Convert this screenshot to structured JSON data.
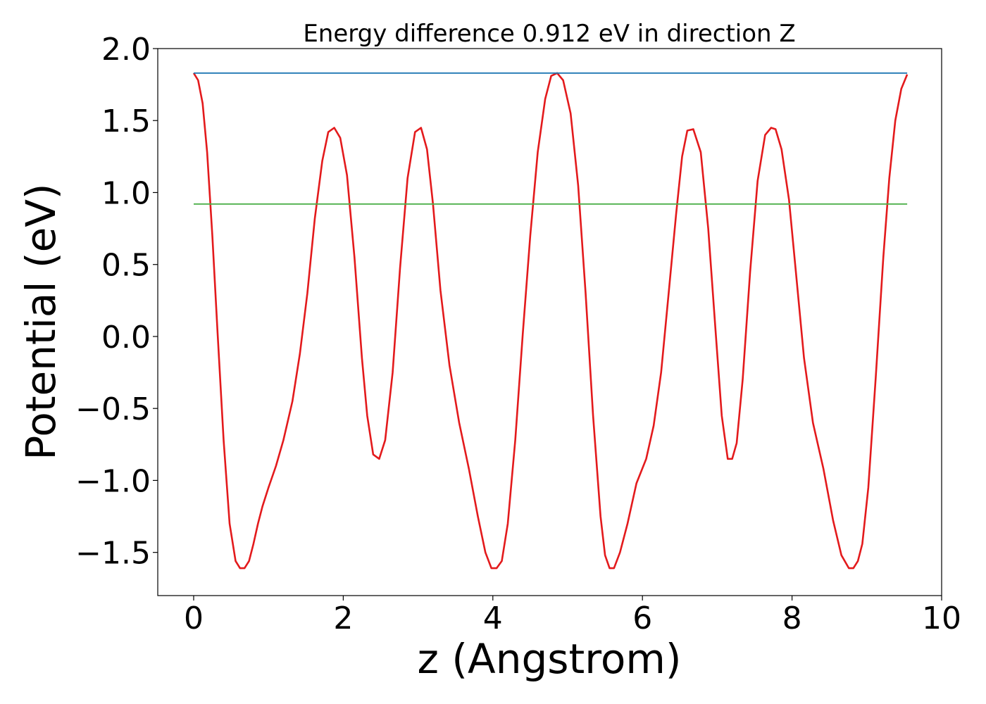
{
  "chart_data": {
    "type": "line",
    "title": "Energy difference 0.912 eV in direction Z",
    "xlabel": "z (Angstrom)",
    "ylabel": "Potential (eV)",
    "xlim": [
      -0.48,
      10.0
    ],
    "ylim": [
      -1.8,
      2.0
    ],
    "xticks": [
      0,
      2,
      4,
      6,
      8,
      10
    ],
    "xtick_labels": [
      "0",
      "2",
      "4",
      "6",
      "8",
      "10"
    ],
    "yticks": [
      -1.5,
      -1.0,
      -0.5,
      0.0,
      0.5,
      1.0,
      1.5,
      2.0
    ],
    "ytick_labels": [
      "−1.5",
      "−1.0",
      "−0.5",
      "0.0",
      "0.5",
      "1.0",
      "1.5",
      "2.0"
    ],
    "grid": false,
    "series": [
      {
        "color": "#e31a1c",
        "x": [
          0.0,
          0.06,
          0.12,
          0.18,
          0.25,
          0.32,
          0.4,
          0.48,
          0.56,
          0.62,
          0.68,
          0.74,
          0.8,
          0.86,
          0.92,
          1.0,
          1.1,
          1.2,
          1.32,
          1.42,
          1.52,
          1.62,
          1.72,
          1.8,
          1.88,
          1.96,
          2.05,
          2.15,
          2.25,
          2.32,
          2.4,
          2.48,
          2.56,
          2.66,
          2.76,
          2.86,
          2.96,
          3.04,
          3.12,
          3.2,
          3.3,
          3.42,
          3.55,
          3.68,
          3.8,
          3.9,
          3.98,
          4.05,
          4.12,
          4.2,
          4.3,
          4.4,
          4.5,
          4.6,
          4.7,
          4.78,
          4.86,
          4.94,
          5.04,
          5.14,
          5.24,
          5.34,
          5.44,
          5.5,
          5.56,
          5.62,
          5.7,
          5.8,
          5.92,
          6.05,
          6.15,
          6.25,
          6.35,
          6.45,
          6.53,
          6.6,
          6.68,
          6.78,
          6.88,
          6.98,
          7.06,
          7.14,
          7.2,
          7.26,
          7.34,
          7.44,
          7.54,
          7.64,
          7.72,
          7.78,
          7.86,
          7.96,
          8.06,
          8.16,
          8.28,
          8.42,
          8.55,
          8.66,
          8.76,
          8.82,
          8.88,
          8.94,
          9.02,
          9.12,
          9.22,
          9.3,
          9.38,
          9.46,
          9.54
        ],
        "y": [
          1.83,
          1.78,
          1.62,
          1.28,
          0.7,
          0.02,
          -0.72,
          -1.3,
          -1.56,
          -1.61,
          -1.61,
          -1.56,
          -1.44,
          -1.3,
          -1.18,
          -1.05,
          -0.9,
          -0.72,
          -0.45,
          -0.12,
          0.3,
          0.82,
          1.22,
          1.42,
          1.45,
          1.38,
          1.12,
          0.55,
          -0.15,
          -0.55,
          -0.82,
          -0.85,
          -0.72,
          -0.25,
          0.48,
          1.1,
          1.42,
          1.45,
          1.3,
          0.92,
          0.32,
          -0.2,
          -0.6,
          -0.92,
          -1.25,
          -1.5,
          -1.61,
          -1.61,
          -1.56,
          -1.3,
          -0.72,
          0.02,
          0.7,
          1.28,
          1.65,
          1.81,
          1.83,
          1.78,
          1.55,
          1.05,
          0.3,
          -0.55,
          -1.25,
          -1.52,
          -1.61,
          -1.61,
          -1.5,
          -1.3,
          -1.02,
          -0.85,
          -0.62,
          -0.25,
          0.3,
          0.85,
          1.25,
          1.43,
          1.44,
          1.28,
          0.75,
          0.02,
          -0.55,
          -0.85,
          -0.85,
          -0.74,
          -0.3,
          0.45,
          1.08,
          1.4,
          1.45,
          1.44,
          1.3,
          0.95,
          0.4,
          -0.15,
          -0.6,
          -0.92,
          -1.28,
          -1.52,
          -1.61,
          -1.61,
          -1.56,
          -1.44,
          -1.05,
          -0.28,
          0.55,
          1.1,
          1.5,
          1.72,
          1.82
        ]
      },
      {
        "color": "#1f77b4",
        "x": [
          0.0,
          9.54
        ],
        "y": [
          1.83,
          1.83
        ]
      },
      {
        "color": "#4daf4a",
        "x": [
          0.0,
          9.54
        ],
        "y": [
          0.92,
          0.92
        ]
      }
    ]
  }
}
